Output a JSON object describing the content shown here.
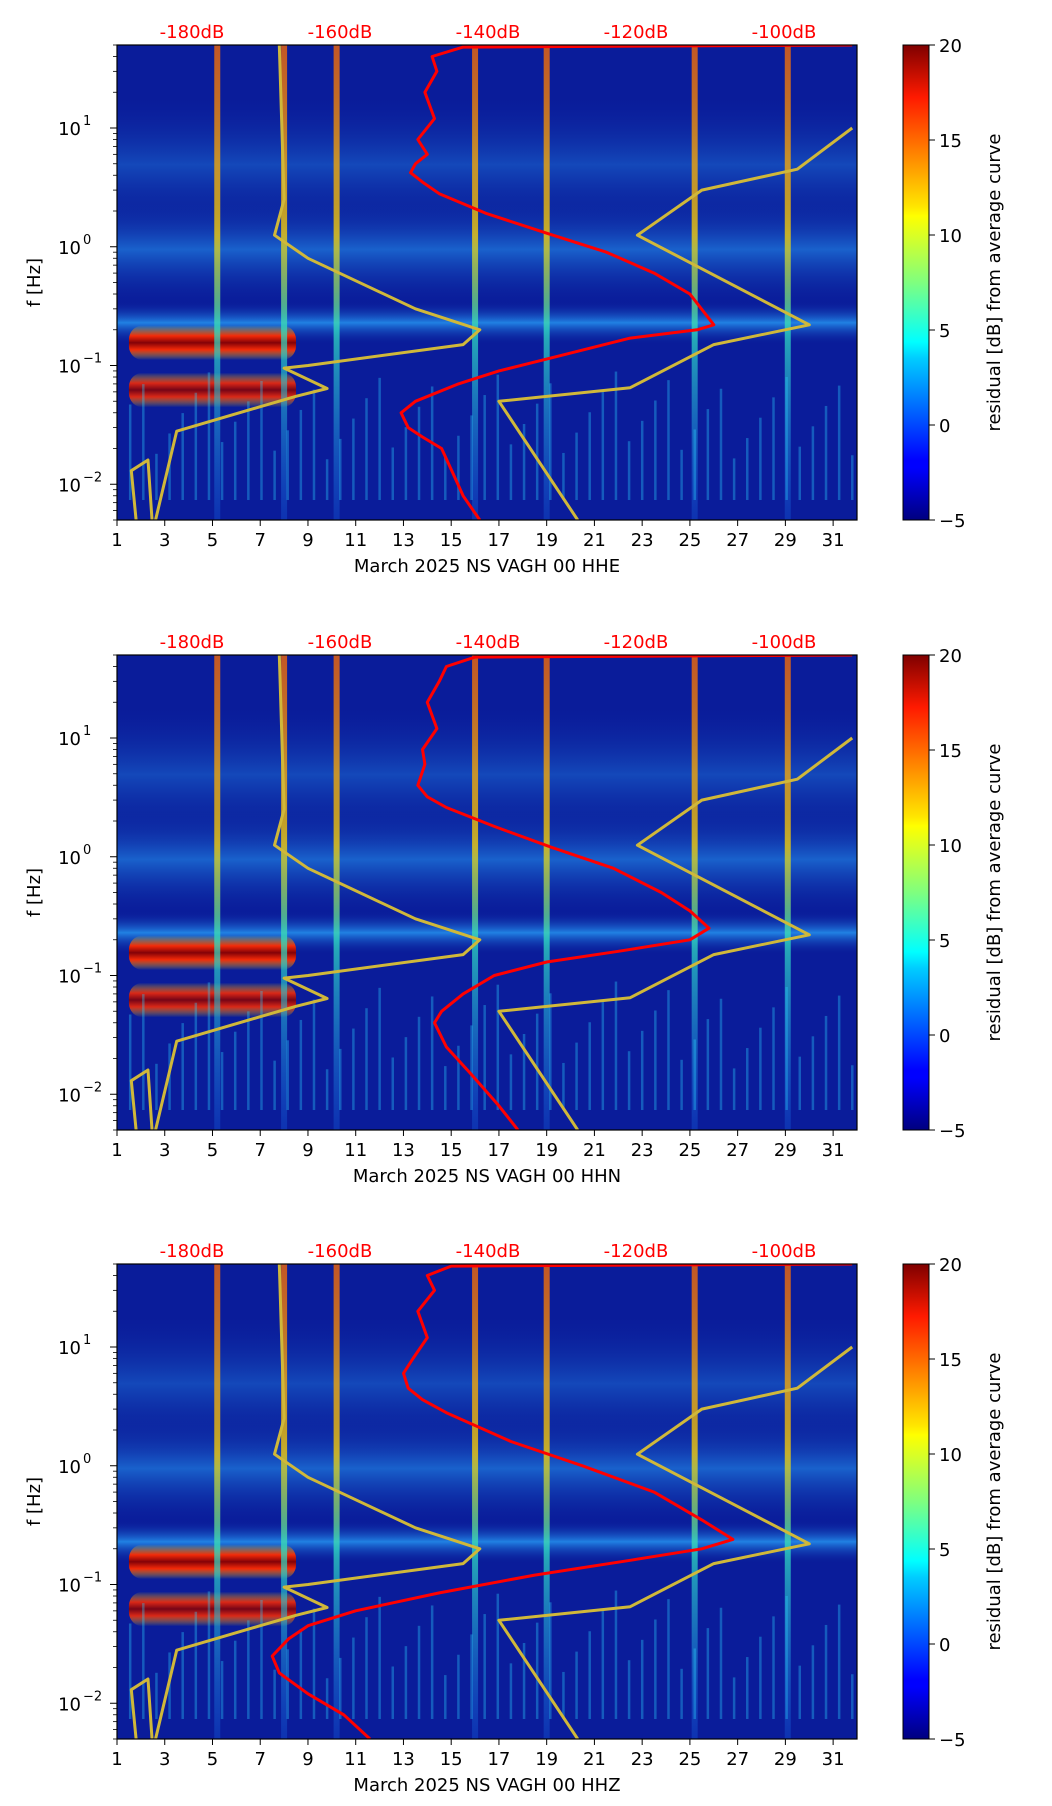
{
  "chart_data": [
    {
      "type": "heatmap",
      "title": "",
      "xlabel": "March 2025 NS VAGH 00 HHE",
      "ylabel": "f [Hz]",
      "x_ticks": [
        "1",
        "3",
        "5",
        "7",
        "9",
        "11",
        "13",
        "15",
        "17",
        "19",
        "21",
        "23",
        "25",
        "27",
        "29",
        "31"
      ],
      "xlim": [
        1,
        32
      ],
      "y_ticks": [
        {
          "label": "10",
          "exp": "1",
          "value": 10
        },
        {
          "label": "10",
          "exp": "0",
          "value": 1
        },
        {
          "label": "10",
          "exp": "−1",
          "value": 0.1
        },
        {
          "label": "10",
          "exp": "−2",
          "value": 0.01
        }
      ],
      "ylim": [
        0.005,
        50
      ],
      "y_scale": "log",
      "top_axis_labels": [
        "-180dB",
        "-160dB",
        "-140dB",
        "-120dB",
        "-100dB"
      ],
      "colorbar": {
        "label": "residual [dB] from average curve",
        "ticks": [
          "20",
          "15",
          "10",
          "5",
          "0",
          "−5"
        ],
        "range": [
          -5,
          20
        ],
        "colormap": "jet"
      },
      "series": [
        {
          "name": "red-psd-curve",
          "color": "#ff0000",
          "x_day": [
            31.8,
            15.5,
            14.2,
            14.4,
            13.9,
            14.3,
            13.6,
            14.0,
            13.5,
            13.3,
            13.8,
            14.5,
            16.5,
            19.0,
            21.5,
            23.5,
            25.0,
            26.0,
            25.3,
            22.5,
            19.5,
            17.0,
            15.3,
            13.5,
            12.9,
            13.2,
            13.8,
            14.6,
            15.1,
            15.5,
            16.2
          ],
          "freq_hz": [
            50,
            48,
            40,
            30,
            20,
            12,
            8,
            6,
            5,
            4.2,
            3.5,
            2.8,
            1.9,
            1.3,
            0.9,
            0.6,
            0.4,
            0.22,
            0.2,
            0.17,
            0.12,
            0.09,
            0.07,
            0.05,
            0.04,
            0.03,
            0.025,
            0.02,
            0.012,
            0.008,
            0.005
          ]
        },
        {
          "name": "yellow-noise-model",
          "color": "#d0b83a",
          "x_day": [
            1.8,
            1.6,
            2.3,
            2.5,
            3.5,
            7.0,
            8.5,
            9.8,
            8.0,
            9.0,
            15.5,
            16.2,
            13.5,
            9.0,
            7.6,
            8.0,
            7.8
          ],
          "freq_hz": [
            0.005,
            0.013,
            0.016,
            0.004,
            0.028,
            0.045,
            0.055,
            0.064,
            0.095,
            0.1,
            0.15,
            0.2,
            0.3,
            0.8,
            1.25,
            2.5,
            50
          ]
        },
        {
          "name": "yellow-noise-model-right",
          "color": "#d0b83a",
          "x_day": [
            20.3,
            17.0,
            22.5,
            26.0,
            30.0,
            22.8,
            25.5,
            29.5,
            31.8
          ],
          "freq_hz": [
            0.005,
            0.05,
            0.065,
            0.15,
            0.22,
            1.25,
            3.0,
            4.5,
            10
          ]
        }
      ],
      "bright_bands_hz": [
        0.15,
        0.06
      ],
      "bright_band_days": [
        [
          1.5,
          8.5
        ]
      ],
      "vertical_streak_days": [
        5.2,
        8.0,
        10.2,
        16.0,
        19.0,
        25.2,
        29.1
      ]
    },
    {
      "type": "heatmap",
      "title": "",
      "xlabel": "March 2025 NS VAGH 00 HHN",
      "ylabel": "f [Hz]",
      "x_ticks": [
        "1",
        "3",
        "5",
        "7",
        "9",
        "11",
        "13",
        "15",
        "17",
        "19",
        "21",
        "23",
        "25",
        "27",
        "29",
        "31"
      ],
      "xlim": [
        1,
        32
      ],
      "y_ticks": [
        {
          "label": "10",
          "exp": "1",
          "value": 10
        },
        {
          "label": "10",
          "exp": "0",
          "value": 1
        },
        {
          "label": "10",
          "exp": "−1",
          "value": 0.1
        },
        {
          "label": "10",
          "exp": "−2",
          "value": 0.01
        }
      ],
      "ylim": [
        0.005,
        50
      ],
      "y_scale": "log",
      "top_axis_labels": [
        "-180dB",
        "-160dB",
        "-140dB",
        "-120dB",
        "-100dB"
      ],
      "colorbar": {
        "label": "residual [dB] from average curve",
        "ticks": [
          "20",
          "15",
          "10",
          "5",
          "0",
          "−5"
        ],
        "range": [
          -5,
          20
        ],
        "colormap": "jet"
      },
      "series": [
        {
          "name": "red-psd-curve",
          "color": "#ff0000",
          "x_day": [
            31.8,
            16.0,
            14.8,
            14.5,
            14.0,
            14.4,
            13.8,
            13.9,
            13.6,
            14.0,
            14.8,
            16.8,
            19.2,
            21.8,
            23.8,
            25.0,
            25.8,
            25.0,
            22.0,
            19.0,
            16.8,
            15.5,
            14.6,
            14.3,
            14.8,
            15.8,
            17.0,
            17.8
          ],
          "freq_hz": [
            50,
            48,
            40,
            30,
            20,
            12,
            8,
            6,
            4,
            3.2,
            2.6,
            1.8,
            1.2,
            0.8,
            0.5,
            0.35,
            0.25,
            0.2,
            0.16,
            0.13,
            0.1,
            0.07,
            0.05,
            0.04,
            0.025,
            0.015,
            0.008,
            0.005
          ]
        },
        {
          "name": "yellow-noise-model",
          "color": "#d0b83a",
          "x_day": [
            1.8,
            1.6,
            2.3,
            2.5,
            3.5,
            7.0,
            8.5,
            9.8,
            8.0,
            9.0,
            15.5,
            16.2,
            13.5,
            9.0,
            7.6,
            8.0,
            7.8
          ],
          "freq_hz": [
            0.005,
            0.013,
            0.016,
            0.004,
            0.028,
            0.045,
            0.055,
            0.064,
            0.095,
            0.1,
            0.15,
            0.2,
            0.3,
            0.8,
            1.25,
            2.5,
            50
          ]
        },
        {
          "name": "yellow-noise-model-right",
          "color": "#d0b83a",
          "x_day": [
            20.3,
            17.0,
            22.5,
            26.0,
            30.0,
            22.8,
            25.5,
            29.5,
            31.8
          ],
          "freq_hz": [
            0.005,
            0.05,
            0.065,
            0.15,
            0.22,
            1.25,
            3.0,
            4.5,
            10
          ]
        }
      ],
      "bright_bands_hz": [
        0.15,
        0.06
      ],
      "bright_band_days": [
        [
          1.5,
          8.5
        ]
      ],
      "vertical_streak_days": [
        5.2,
        8.0,
        10.2,
        16.0,
        19.0,
        25.2,
        29.1
      ]
    },
    {
      "type": "heatmap",
      "title": "",
      "xlabel": "March 2025 NS VAGH 00 HHZ",
      "ylabel": "f [Hz]",
      "x_ticks": [
        "1",
        "3",
        "5",
        "7",
        "9",
        "11",
        "13",
        "15",
        "17",
        "19",
        "21",
        "23",
        "25",
        "27",
        "29",
        "31"
      ],
      "xlim": [
        1,
        32
      ],
      "y_ticks": [
        {
          "label": "10",
          "exp": "1",
          "value": 10
        },
        {
          "label": "10",
          "exp": "0",
          "value": 1
        },
        {
          "label": "10",
          "exp": "−1",
          "value": 0.1
        },
        {
          "label": "10",
          "exp": "−2",
          "value": 0.01
        }
      ],
      "ylim": [
        0.005,
        50
      ],
      "y_scale": "log",
      "top_axis_labels": [
        "-180dB",
        "-160dB",
        "-140dB",
        "-120dB",
        "-100dB"
      ],
      "colorbar": {
        "label": "residual [dB] from average curve",
        "ticks": [
          "20",
          "15",
          "10",
          "5",
          "0",
          "−5"
        ],
        "range": [
          -5,
          20
        ],
        "colormap": "jet"
      },
      "series": [
        {
          "name": "red-psd-curve",
          "color": "#ff0000",
          "x_day": [
            31.8,
            15.0,
            14.0,
            14.3,
            13.6,
            14.0,
            13.4,
            13.0,
            13.2,
            13.8,
            14.8,
            17.5,
            20.5,
            23.5,
            25.5,
            26.8,
            25.5,
            22.5,
            18.5,
            14.5,
            11.0,
            9.0,
            8.2,
            7.5,
            7.8,
            9.0,
            10.5,
            11.6
          ],
          "freq_hz": [
            50,
            48,
            40,
            30,
            20,
            12,
            8,
            6,
            4.5,
            3.6,
            2.8,
            1.6,
            1.0,
            0.6,
            0.35,
            0.24,
            0.2,
            0.16,
            0.12,
            0.085,
            0.06,
            0.045,
            0.035,
            0.025,
            0.018,
            0.012,
            0.008,
            0.005
          ]
        },
        {
          "name": "yellow-noise-model",
          "color": "#d0b83a",
          "x_day": [
            1.8,
            1.6,
            2.3,
            2.5,
            3.5,
            7.0,
            8.5,
            9.8,
            8.0,
            9.0,
            15.5,
            16.2,
            13.5,
            9.0,
            7.6,
            8.0,
            7.8
          ],
          "freq_hz": [
            0.005,
            0.013,
            0.016,
            0.004,
            0.028,
            0.045,
            0.055,
            0.064,
            0.095,
            0.1,
            0.15,
            0.2,
            0.3,
            0.8,
            1.25,
            2.5,
            50
          ]
        },
        {
          "name": "yellow-noise-model-right",
          "color": "#d0b83a",
          "x_day": [
            20.3,
            17.0,
            22.5,
            26.0,
            30.0,
            22.8,
            25.5,
            29.5,
            31.8
          ],
          "freq_hz": [
            0.005,
            0.05,
            0.065,
            0.15,
            0.22,
            1.25,
            3.0,
            4.5,
            10
          ]
        }
      ],
      "bright_bands_hz": [
        0.15,
        0.06
      ],
      "bright_band_days": [
        [
          1.5,
          8.5
        ]
      ],
      "vertical_streak_days": [
        5.2,
        8.0,
        10.2,
        16.0,
        19.0,
        25.2,
        29.1
      ]
    }
  ],
  "colors": {
    "background_dark_blue": "#0a1c9a",
    "red_curve": "#ff0000",
    "yellow_curve": "#d0b83a",
    "db_label": "#ff0000"
  }
}
